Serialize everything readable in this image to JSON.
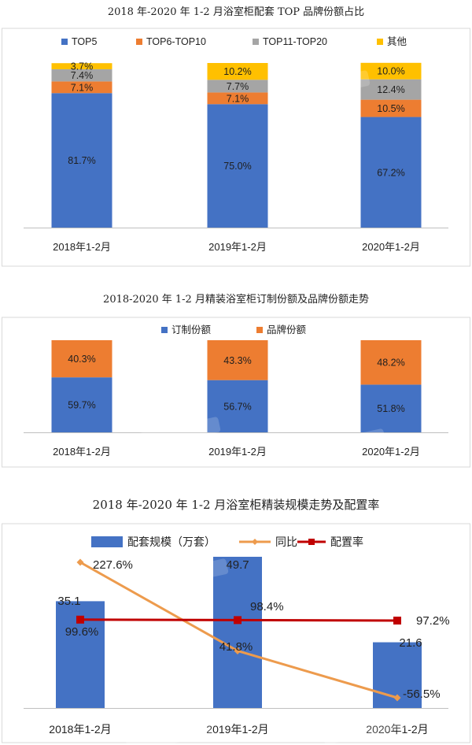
{
  "chart_data": [
    {
      "type": "bar",
      "stacked": true,
      "title": "2018 年-2020 年 1-2 月浴室柜配套 TOP 品牌份额占比",
      "categories": [
        "2018年1-2月",
        "2019年1-2月",
        "2020年1-2月"
      ],
      "series": [
        {
          "name": "TOP5",
          "values": [
            81.7,
            75.0,
            67.2
          ],
          "labels": [
            "81.7%",
            "75.0%",
            "67.2%"
          ],
          "color": "#4472C4"
        },
        {
          "name": "TOP6-TOP10",
          "values": [
            7.1,
            7.1,
            10.5
          ],
          "labels": [
            "7.1%",
            "7.1%",
            "10.5%"
          ],
          "color": "#ED7D31"
        },
        {
          "name": "TOP11-TOP20",
          "values": [
            7.4,
            7.7,
            12.4
          ],
          "labels": [
            "7.4%",
            "7.7%",
            "12.4%"
          ],
          "color": "#A5A5A5"
        },
        {
          "name": "其他",
          "values": [
            3.7,
            10.2,
            10.0
          ],
          "labels": [
            "3.7%",
            "10.2%",
            "10.0%"
          ],
          "color": "#FFC000"
        }
      ],
      "ylim": [
        0,
        100
      ],
      "legend": "top"
    },
    {
      "type": "bar",
      "stacked": true,
      "title": "2018-2020 年 1-2 月精装浴室柜订制份额及品牌份额走势",
      "categories": [
        "2018年1-2月",
        "2019年1-2月",
        "2020年1-2月"
      ],
      "series": [
        {
          "name": "订制份额",
          "values": [
            59.7,
            56.7,
            51.8
          ],
          "labels": [
            "59.7%",
            "56.7%",
            "51.8%"
          ],
          "color": "#4472C4"
        },
        {
          "name": "品牌份额",
          "values": [
            40.3,
            43.3,
            48.2
          ],
          "labels": [
            "40.3%",
            "43.3%",
            "48.2%"
          ],
          "color": "#ED7D31"
        }
      ],
      "ylim": [
        0,
        100
      ],
      "legend": "top"
    },
    {
      "type": "bar",
      "title": "2018 年-2020 年 1-2 月浴室柜精装规模走势及配置率",
      "categories": [
        "2018年1-2月",
        "2019年1-2月",
        "2020年1-2月"
      ],
      "series": [
        {
          "name": "配套规模（万套）",
          "kind": "bar",
          "values": [
            35.1,
            49.7,
            21.6
          ],
          "labels": [
            "35.1",
            "49.7",
            "21.6"
          ],
          "color": "#4472C4"
        },
        {
          "name": "同比",
          "kind": "line",
          "values": [
            227.6,
            41.8,
            -56.5
          ],
          "labels": [
            "227.6%",
            "41.8%",
            "-56.5%"
          ],
          "color": "#ED9B4D"
        },
        {
          "name": "配置率",
          "kind": "line",
          "values": [
            99.6,
            98.4,
            97.2
          ],
          "labels": [
            "99.6%",
            "98.4%",
            "97.2%"
          ],
          "color": "#C00000"
        }
      ],
      "legend": "top"
    }
  ]
}
